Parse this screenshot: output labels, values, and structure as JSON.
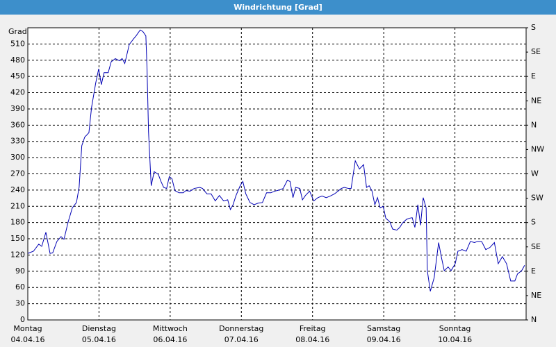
{
  "chart_data": {
    "type": "line",
    "title": "Windrichtung [Grad]",
    "y_label": "Grad",
    "xlim": [
      0,
      168
    ],
    "xticks": [
      {
        "value": 0,
        "label": "Montag",
        "date": "04.04.16"
      },
      {
        "value": 24,
        "label": "Dienstag",
        "date": "05.04.16"
      },
      {
        "value": 48,
        "label": "Mittwoch",
        "date": "06.04.16"
      },
      {
        "value": 72,
        "label": "Donnerstag",
        "date": "07.04.16"
      },
      {
        "value": 96,
        "label": "Freitag",
        "date": "08.04.16"
      },
      {
        "value": 120,
        "label": "Samstag",
        "date": "09.04.16"
      },
      {
        "value": 144,
        "label": "Sonntag",
        "date": "10.04.16"
      }
    ],
    "ylim": [
      0,
      540
    ],
    "yticks": [
      0,
      30,
      60,
      90,
      120,
      150,
      180,
      210,
      240,
      270,
      300,
      330,
      360,
      390,
      420,
      450,
      480,
      510
    ],
    "y2lim": [
      0,
      540
    ],
    "y2ticks": [
      {
        "value": 0,
        "label": "N"
      },
      {
        "value": 45,
        "label": "NE"
      },
      {
        "value": 90,
        "label": "E"
      },
      {
        "value": 135,
        "label": "SE"
      },
      {
        "value": 180,
        "label": "S"
      },
      {
        "value": 225,
        "label": "SW"
      },
      {
        "value": 270,
        "label": "W"
      },
      {
        "value": 315,
        "label": "NW"
      },
      {
        "value": 360,
        "label": "N"
      },
      {
        "value": 405,
        "label": "NE"
      },
      {
        "value": 450,
        "label": "E"
      },
      {
        "value": 495,
        "label": "SE"
      },
      {
        "value": 540,
        "label": "S"
      }
    ],
    "grid": true,
    "series": [
      {
        "color": "#0000b4",
        "x": [
          0,
          1.9,
          3.7,
          4.7,
          6.1,
          7.5,
          8.4,
          9.8,
          11.2,
          12.2,
          13.6,
          15,
          16.4,
          17.3,
          18.2,
          19.2,
          20.6,
          21.5,
          22.9,
          23.9,
          24.8,
          25.7,
          27.1,
          28.1,
          29.5,
          30.9,
          31.8,
          32.7,
          34.2,
          35.6,
          36.5,
          37.9,
          38.8,
          39.8,
          40.2,
          40.7,
          41.6,
          42.6,
          44,
          44.9,
          45.8,
          46.8,
          47.7,
          48.6,
          49.6,
          51,
          52.4,
          53.3,
          54.7,
          56.1,
          58,
          58.9,
          60.4,
          61.8,
          63.2,
          64.6,
          66,
          67.4,
          68.3,
          69.2,
          70.2,
          71.6,
          72.5,
          73.5,
          74.9,
          76.3,
          77.7,
          79.1,
          80.5,
          81.9,
          83.3,
          84.7,
          86.1,
          87.5,
          88.4,
          89.4,
          90.3,
          91.7,
          92.6,
          93.6,
          95,
          96.4,
          97.8,
          99.2,
          100.6,
          102,
          103.4,
          104.8,
          105.7,
          106.7,
          108.1,
          109,
          110.4,
          111.8,
          113.2,
          114.2,
          115.1,
          116,
          117,
          117.9,
          118.8,
          119.8,
          120.7,
          122.1,
          123,
          124.4,
          125.4,
          126.3,
          127.7,
          128.7,
          129.6,
          130.5,
          131.5,
          132.4,
          133.3,
          134.3,
          134.7,
          135.7,
          137,
          138.5,
          139.4,
          140.4,
          141.7,
          142.7,
          144.1,
          145,
          146.4,
          147.8,
          149.2,
          150.6,
          151.6,
          153,
          154.4,
          155.8,
          157.3,
          158.6,
          160,
          161.4,
          162.8,
          164.2,
          165.1,
          166.5,
          167.5
        ],
        "values": [
          123,
          127,
          140,
          136,
          162,
          123,
          124,
          145,
          154,
          149,
          181,
          207,
          217,
          245,
          322,
          338,
          346,
          393,
          438,
          464,
          435,
          457,
          457,
          477,
          483,
          479,
          483,
          474,
          509,
          519,
          525,
          536,
          533,
          525,
          464,
          348,
          248,
          274,
          269,
          256,
          245,
          243,
          265,
          261,
          239,
          235,
          235,
          239,
          238,
          243,
          245,
          243,
          233,
          233,
          220,
          230,
          220,
          222,
          204,
          213,
          230,
          248,
          256,
          233,
          217,
          213,
          216,
          217,
          235,
          235,
          238,
          240,
          243,
          258,
          256,
          226,
          245,
          243,
          222,
          230,
          238,
          220,
          226,
          229,
          226,
          229,
          233,
          239,
          243,
          245,
          243,
          243,
          294,
          279,
          287,
          245,
          248,
          239,
          213,
          226,
          207,
          210,
          188,
          181,
          168,
          166,
          171,
          179,
          186,
          188,
          189,
          171,
          213,
          175,
          226,
          207,
          91,
          53,
          78,
          143,
          117,
          91,
          98,
          91,
          104,
          127,
          130,
          127,
          145,
          143,
          145,
          145,
          130,
          134,
          143,
          104,
          117,
          104,
          72,
          72,
          85,
          91,
          101
        ]
      }
    ]
  }
}
